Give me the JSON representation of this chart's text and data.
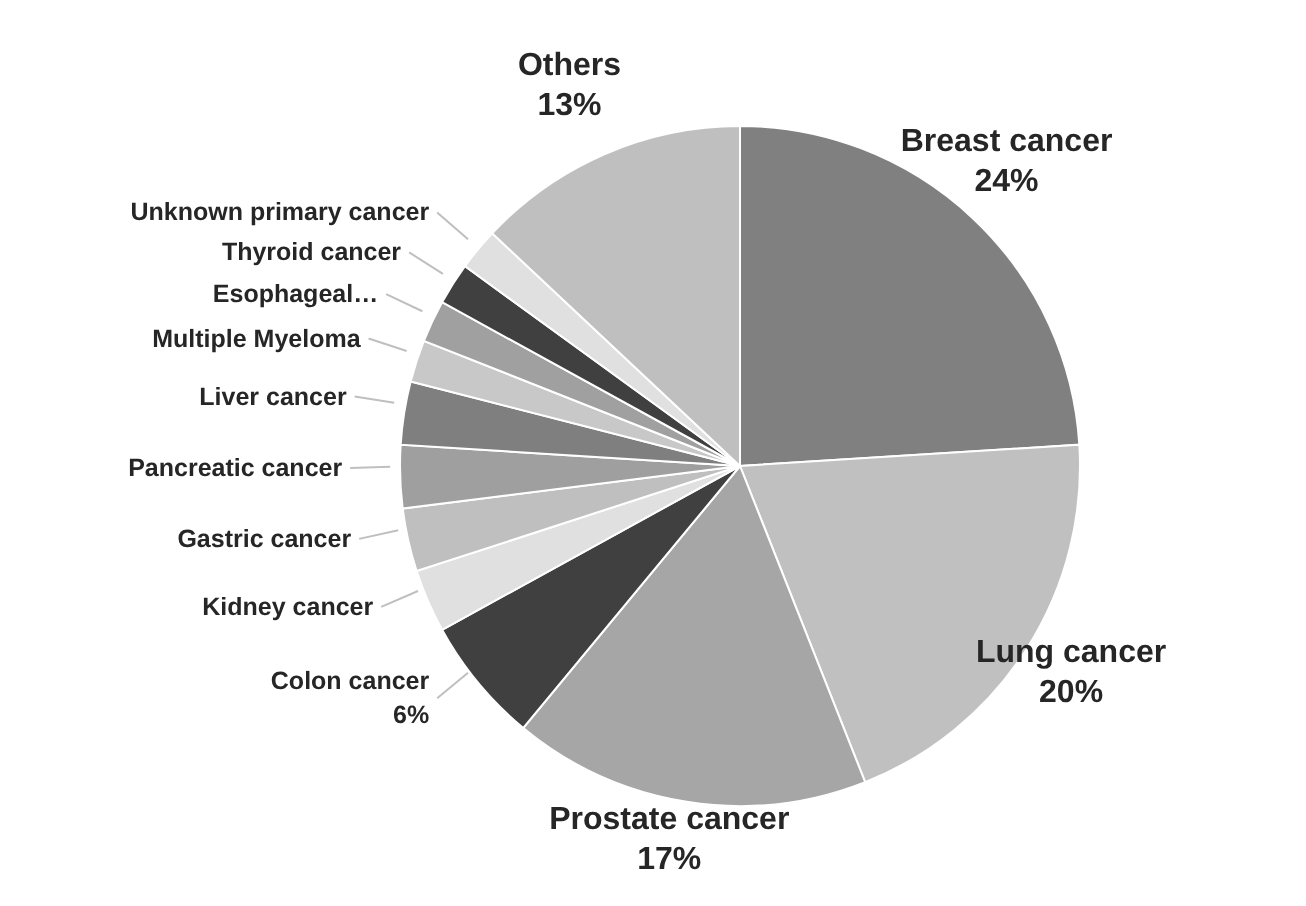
{
  "chart_data": {
    "type": "pie",
    "categories": [
      "Breast cancer",
      "Lung cancer",
      "Prostate cancer",
      "Colon cancer",
      "Kidney cancer",
      "Gastric cancer",
      "Pancreatic cancer",
      "Liver cancer",
      "Multiple Myeloma",
      "Esophageal…",
      "Thyroid cancer",
      "Unknown primary cancer",
      "Others"
    ],
    "values": [
      24,
      20,
      17,
      6,
      3,
      3,
      3,
      3,
      2,
      2,
      2,
      2,
      13
    ],
    "colors": [
      "#808080",
      "#c0c0c0",
      "#a6a6a6",
      "#404040",
      "#e0e0e0",
      "#bfbfbf",
      "#9f9f9f",
      "#7f7f7f",
      "#c8c8c8",
      "#a0a0a0",
      "#404040",
      "#e0e0e0",
      "#bfbfbf"
    ],
    "value_labels": [
      "24%",
      "20%",
      "17%",
      "6%",
      null,
      null,
      null,
      null,
      null,
      null,
      null,
      null,
      "13%"
    ]
  }
}
